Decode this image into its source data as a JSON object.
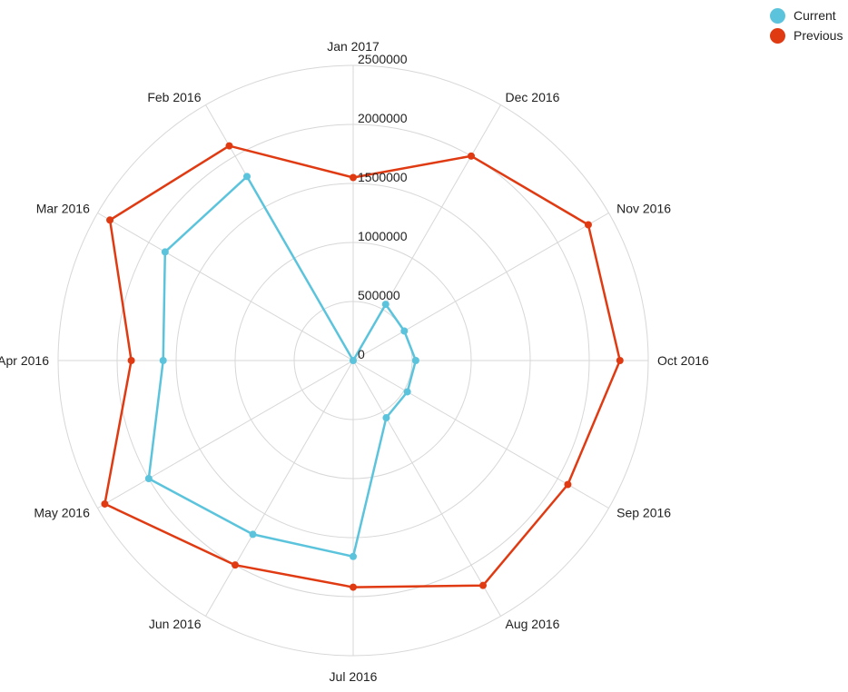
{
  "chart_data": {
    "type": "radar",
    "title": "",
    "categories": [
      "Jan 2017",
      "Dec 2016",
      "Nov 2016",
      "Oct 2016",
      "Sep 2016",
      "Aug 2016",
      "Jul 2016",
      "Jun 2016",
      "May 2016",
      "Apr 2016",
      "Mar 2016",
      "Feb 2016"
    ],
    "rlim": [
      0,
      2500000
    ],
    "ticks": [
      "0",
      "500000",
      "1000000",
      "1500000",
      "2000000",
      "2500000"
    ],
    "tick_values": [
      0,
      500000,
      1000000,
      1500000,
      2000000,
      2500000
    ],
    "grid": true,
    "legend_position": "top-right",
    "series": [
      {
        "name": "Current",
        "color": "#5bc4dc",
        "values": [
          0,
          550000,
          500000,
          530000,
          530000,
          560000,
          1660000,
          1700000,
          2000000,
          1610000,
          1840000,
          1800000
        ]
      },
      {
        "name": "Previous",
        "color": "#e03a12",
        "values": [
          1550000,
          2000000,
          2300000,
          2260000,
          2100000,
          2200000,
          1920000,
          2000000,
          2430000,
          1880000,
          2380000,
          2100000
        ]
      }
    ]
  }
}
